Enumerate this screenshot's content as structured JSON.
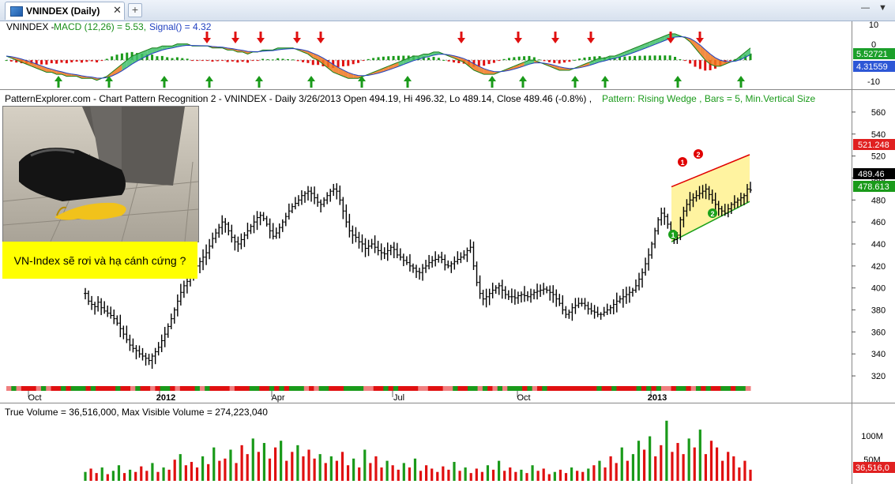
{
  "tab": {
    "title": "VNINDEX (Daily)",
    "close": "✕",
    "add": "+"
  },
  "window": {
    "minimize": "—",
    "maximize": "▼"
  },
  "macd_panel": {
    "name": "VNINDEX - ",
    "macd_text": "MACD (12,26) = 5.53,",
    "signal_text": "Signal() = 4.32",
    "ticks": [
      "10",
      "0",
      "-10"
    ],
    "badge_macd": "5.52721",
    "badge_signal": "4.31559",
    "color_macd_badge": "#1b9f2a",
    "color_signal_badge": "#2d57d6"
  },
  "price_panel": {
    "header_black": "PatternExplorer.com - Chart Pattern Recognition 2 - VNINDEX - Daily 3/26/2013 Open 494.19, Hi 496.32, Lo 489.14, Close 489.46 (-0.8%) ,",
    "header_green": "Pattern: Rising Wedge , Bars = 5, Min.Vertical Size",
    "ticks": [
      "560",
      "540",
      "520",
      "500",
      "480",
      "460",
      "440",
      "420",
      "400",
      "380",
      "360",
      "340",
      "320"
    ],
    "badge_upper": "521.248",
    "badge_close": "489.46",
    "badge_lower": "478.613",
    "markers": [
      "1",
      "2",
      "1",
      "2"
    ],
    "caption": "VN-Index sẽ rơi và hạ cánh cứng ?",
    "x_labels": [
      "Oct",
      "2012",
      "Apr",
      "Jul",
      "Oct",
      "2013"
    ]
  },
  "volume_panel": {
    "header": "True Volume = 36,516,000,    Max Visible Volume = 274,223,040",
    "ticks": [
      "100M",
      "50M"
    ],
    "badge": "36,516,0"
  },
  "colors": {
    "up": "#1a9a1a",
    "down": "#e01010",
    "wedge_fill": "#fff3a0",
    "wedge_upper": "#e00000",
    "wedge_lower": "#1aa01a",
    "caption_bg": "#ffff00"
  },
  "chart_data": {
    "type": "line",
    "x_labels": [
      "Oct",
      "2012",
      "Apr",
      "Jul",
      "Oct",
      "2013"
    ],
    "y_ticks": [
      560,
      540,
      520,
      500,
      480,
      460,
      440,
      420,
      400,
      380,
      360,
      340,
      320
    ],
    "ylim": [
      310,
      570
    ],
    "close_series": [
      395,
      388,
      385,
      383,
      387,
      382,
      379,
      377,
      375,
      372,
      368,
      363,
      358,
      353,
      348,
      345,
      343,
      340,
      338,
      336,
      334,
      338,
      342,
      346,
      352,
      358,
      365,
      372,
      380,
      388,
      396,
      402,
      406,
      410,
      415,
      420,
      424,
      428,
      432,
      438,
      445,
      450,
      455,
      460,
      458,
      452,
      446,
      442,
      440,
      444,
      448,
      452,
      456,
      460,
      464,
      466,
      463,
      458,
      452,
      447,
      450,
      455,
      460,
      465,
      470,
      474,
      477,
      480,
      484,
      486,
      488,
      486,
      482,
      478,
      476,
      480,
      484,
      488,
      490,
      488,
      480,
      470,
      460,
      452,
      448,
      446,
      442,
      440,
      436,
      438,
      440,
      437,
      434,
      432,
      431,
      434,
      437,
      435,
      430,
      428,
      425,
      423,
      420,
      418,
      415,
      414,
      418,
      420,
      423,
      425,
      426,
      428,
      426,
      421,
      420,
      422,
      424,
      426,
      428,
      430,
      434,
      437,
      420,
      405,
      395,
      390,
      392,
      395,
      398,
      400,
      402,
      398,
      394,
      392,
      392,
      391,
      393,
      394,
      393,
      392,
      394,
      396,
      397,
      398,
      399,
      398,
      396,
      394,
      390,
      386,
      380,
      376,
      378,
      382,
      384,
      386,
      386,
      384,
      381,
      379,
      378,
      376,
      376,
      378,
      380,
      382,
      385,
      388,
      390,
      392,
      394,
      396,
      398,
      402,
      408,
      414,
      422,
      430,
      440,
      452,
      462,
      468,
      465,
      458,
      450,
      444,
      448,
      462,
      470,
      476,
      480,
      482,
      484,
      486,
      488,
      490,
      485,
      480,
      476,
      472,
      470,
      468,
      472,
      476,
      478,
      480,
      482,
      484,
      490,
      489
    ],
    "macd_series": [
      2,
      1,
      0,
      -1,
      -2,
      -3,
      -4,
      -5,
      -6,
      -6,
      -7,
      -7,
      -8,
      -8,
      -8,
      -9,
      -9,
      -9,
      -10,
      -9,
      -8,
      -6,
      -4,
      -2,
      0,
      2,
      3,
      4,
      5,
      6,
      6,
      7,
      7,
      7,
      8,
      8,
      8,
      7,
      7,
      7,
      7,
      6,
      6,
      6,
      5,
      5,
      4,
      4,
      3,
      4,
      4,
      5,
      5,
      5,
      6,
      6,
      6,
      6,
      5,
      4,
      3,
      1,
      0,
      -2,
      -4,
      -6,
      -7,
      -8,
      -9,
      -9,
      -9,
      -8,
      -7,
      -6,
      -5,
      -4,
      -3,
      -2,
      -1,
      0,
      1,
      2,
      2,
      3,
      3,
      4,
      4,
      3,
      2,
      1,
      0,
      -1,
      -3,
      -5,
      -6,
      -7,
      -7,
      -7,
      -6,
      -5,
      -4,
      -3,
      -2,
      -1,
      0,
      0,
      -1,
      -2,
      -3,
      -4,
      -5,
      -5,
      -5,
      -4,
      -3,
      -2,
      -1,
      0,
      1,
      1,
      2,
      2,
      3,
      4,
      5,
      6,
      7,
      8,
      9,
      10,
      11,
      12,
      13,
      13,
      12,
      11,
      9,
      6,
      3,
      0,
      -2,
      -3,
      -3,
      -2,
      -1,
      0,
      2,
      4,
      6
    ],
    "volume_series": [
      40,
      55,
      35,
      60,
      30,
      45,
      70,
      35,
      50,
      40,
      65,
      45,
      80,
      40,
      60,
      50,
      95,
      120,
      70,
      85,
      60,
      110,
      75,
      150,
      90,
      100,
      140,
      80,
      160,
      120,
      190,
      130,
      170,
      100,
      150,
      180,
      90,
      130,
      160,
      110,
      140,
      100,
      120,
      80,
      110,
      90,
      130,
      70,
      100,
      60,
      140,
      80,
      110,
      60,
      90,
      70,
      50,
      80,
      60,
      100,
      45,
      70,
      55,
      40,
      65,
      50,
      85,
      45,
      60,
      35,
      55,
      40,
      70,
      50,
      90,
      45,
      60,
      40,
      50,
      35,
      70,
      45,
      55,
      30,
      40,
      50,
      35,
      60,
      45,
      40,
      55,
      70,
      90,
      60,
      110,
      80,
      150,
      90,
      120,
      180,
      140,
      200,
      110,
      160,
      270,
      130,
      170,
      120,
      190,
      150,
      230,
      120,
      180,
      150,
      90,
      130,
      110,
      60,
      90,
      50
    ],
    "wedge": {
      "upper_line": [
        [
          0,
          492
        ],
        [
          1,
          521.248
        ]
      ],
      "lower_line": [
        [
          0,
          442
        ],
        [
          1,
          478.613
        ]
      ]
    }
  }
}
